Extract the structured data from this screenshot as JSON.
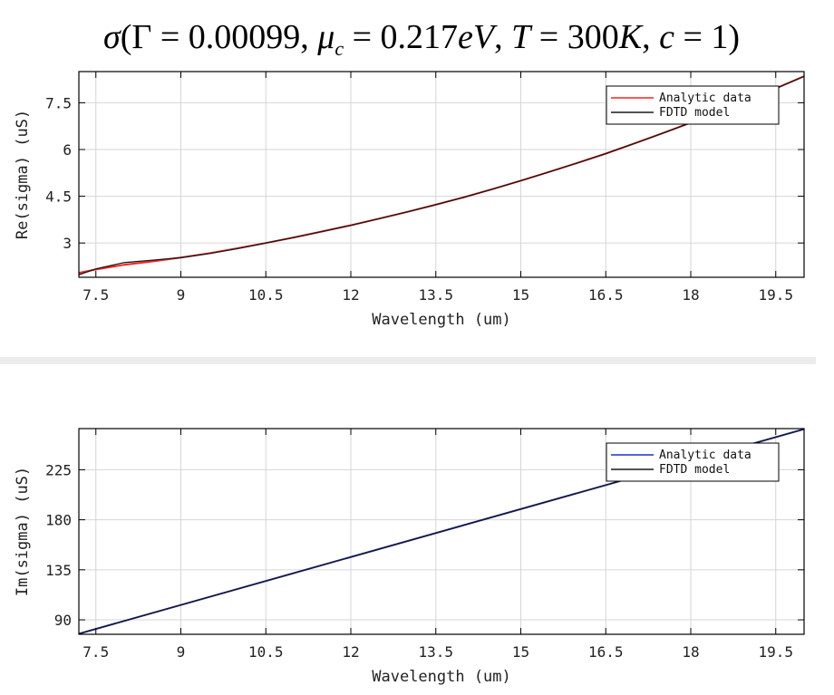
{
  "title": {
    "sigma": "σ",
    "open": "(",
    "gamma": "Γ",
    "eq1": " = 0.00099, ",
    "mu": "μ",
    "mu_sub": "c",
    "eq2": " = 0.217",
    "unit1": "eV",
    "comma2": ", ",
    "T": "T",
    "eq3": " = 300",
    "unit2": "K",
    "comma3": ", ",
    "c": "c",
    "eq4": " = 1)"
  },
  "chart_data": [
    {
      "type": "line",
      "id": "real",
      "xlabel": "Wavelength (um)",
      "ylabel": "Re(sigma) (uS)",
      "xlim": [
        7.2,
        20.0
      ],
      "ylim": [
        1.9,
        8.5
      ],
      "xticks": [
        7.5,
        9,
        10.5,
        12,
        13.5,
        15,
        16.5,
        18,
        19.5
      ],
      "xtick_labels": [
        "7.5",
        "9",
        "10.5",
        "12",
        "13.5",
        "15",
        "16.5",
        "18",
        "19.5"
      ],
      "yticks": [
        3,
        4.5,
        6,
        7.5
      ],
      "ytick_labels": [
        "3",
        "4.5",
        "6",
        "7.5"
      ],
      "grid": true,
      "legend_position": "top-right",
      "series": [
        {
          "name": "Analytic data",
          "color": "#ff2020",
          "x": [
            7.2,
            7.5,
            8,
            8.5,
            9,
            9.5,
            10,
            10.5,
            11,
            11.5,
            12,
            12.5,
            13,
            13.5,
            14,
            14.5,
            15,
            15.5,
            16,
            16.5,
            17,
            17.5,
            18,
            18.5,
            19,
            19.5,
            20
          ],
          "y": [
            2.04,
            2.15,
            2.3,
            2.41,
            2.53,
            2.67,
            2.83,
            3.0,
            3.18,
            3.37,
            3.57,
            3.78,
            4.0,
            4.23,
            4.47,
            4.73,
            5.0,
            5.28,
            5.57,
            5.87,
            6.19,
            6.52,
            6.86,
            7.21,
            7.58,
            7.96,
            8.35
          ]
        },
        {
          "name": "FDTD model",
          "color": "#1a1a1a",
          "x": [
            7.2,
            7.5,
            8,
            8.5,
            9,
            9.5,
            10,
            10.5,
            11,
            11.5,
            12,
            12.5,
            13,
            13.5,
            14,
            14.5,
            15,
            15.5,
            16,
            16.5,
            17,
            17.5,
            18,
            18.5,
            19,
            19.5,
            20
          ],
          "y": [
            1.98,
            2.17,
            2.37,
            2.45,
            2.53,
            2.66,
            2.82,
            3.0,
            3.18,
            3.37,
            3.57,
            3.78,
            4.0,
            4.23,
            4.47,
            4.73,
            5.0,
            5.28,
            5.57,
            5.87,
            6.19,
            6.52,
            6.86,
            7.21,
            7.58,
            7.96,
            8.35
          ]
        }
      ]
    },
    {
      "type": "line",
      "id": "imag",
      "xlabel": "Wavelength (um)",
      "ylabel": "Im(sigma) (uS)",
      "xlim": [
        7.2,
        20.0
      ],
      "ylim": [
        77,
        262
      ],
      "xticks": [
        7.5,
        9,
        10.5,
        12,
        13.5,
        15,
        16.5,
        18,
        19.5
      ],
      "xtick_labels": [
        "7.5",
        "9",
        "10.5",
        "12",
        "13.5",
        "15",
        "16.5",
        "18",
        "19.5"
      ],
      "yticks": [
        90,
        135,
        180,
        225
      ],
      "ytick_labels": [
        "90",
        "135",
        "180",
        "225"
      ],
      "grid": true,
      "legend_position": "top-right",
      "series": [
        {
          "name": "Analytic data",
          "color": "#1f2fd0",
          "x": [
            7.2,
            20.0
          ],
          "y": [
            77.5,
            261.5
          ]
        },
        {
          "name": "FDTD model",
          "color": "#1a1a1a",
          "x": [
            7.2,
            20.0
          ],
          "y": [
            77.5,
            261.5
          ]
        }
      ]
    }
  ]
}
